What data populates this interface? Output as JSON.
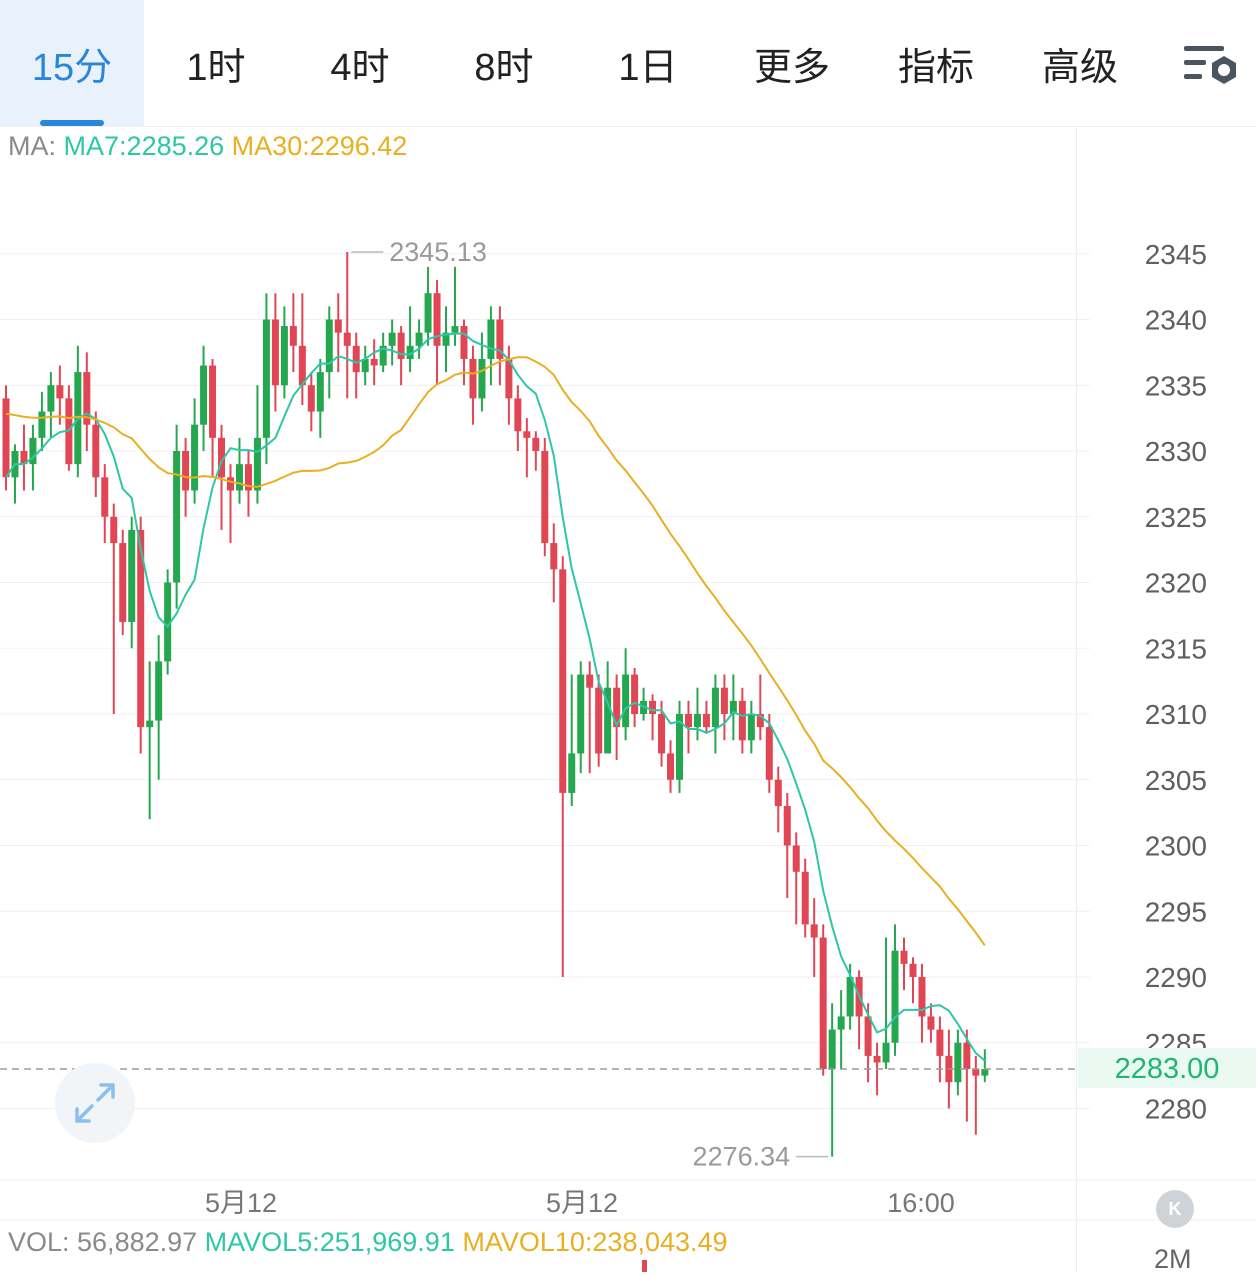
{
  "tabs": [
    {
      "label": "15分",
      "active": true
    },
    {
      "label": "1时"
    },
    {
      "label": "4时"
    },
    {
      "label": "8时"
    },
    {
      "label": "1日"
    },
    {
      "label": "更多",
      "dropdown": true
    },
    {
      "label": "指标",
      "dropdown": true
    },
    {
      "label": "高级",
      "dropdown": true
    }
  ],
  "settings_icon": "chart-settings-icon",
  "ma_legend": {
    "prefix": "MA:",
    "ma7": "MA7:2285.26",
    "ma30": "MA30:2296.42"
  },
  "vol_legend": {
    "vol": "VOL: 56,882.97",
    "mavol5": "MAVOL5:251,969.91",
    "mavol10": "MAVOL10:238,043.49"
  },
  "current_price": "2283.00",
  "vol_axis_label": "2M",
  "k_button_label": "K",
  "expand_icon": "expand-arrows-icon",
  "colors": {
    "up": "#25a750",
    "down": "#e04653",
    "ma7": "#2ec7a6",
    "ma30": "#e8b020",
    "active": "#2a86db"
  },
  "chart_data": {
    "type": "candlestick",
    "y_ticks": [
      2345,
      2340,
      2335,
      2330,
      2325,
      2320,
      2315,
      2310,
      2305,
      2300,
      2295,
      2290,
      2285,
      2280
    ],
    "ylim": [
      2274,
      2349
    ],
    "x_labels": [
      "5月12",
      "5月12",
      "16:00"
    ],
    "high_annotation": "2345.13",
    "low_annotation": "2276.34",
    "last_price": 2283.0,
    "candles": [
      [
        2334.0,
        2328.0,
        2335.0,
        2327.0
      ],
      [
        2328.0,
        2330.0,
        2330.5,
        2326.0
      ],
      [
        2330.0,
        2329.0,
        2332.0,
        2327.0
      ],
      [
        2329.0,
        2331.0,
        2332.0,
        2327.0
      ],
      [
        2331.0,
        2333.0,
        2334.5,
        2330.0
      ],
      [
        2333.0,
        2335.0,
        2336.0,
        2331.0
      ],
      [
        2335.0,
        2334.0,
        2336.5,
        2332.0
      ],
      [
        2334.0,
        2329.0,
        2335.0,
        2328.5
      ],
      [
        2329.0,
        2336.0,
        2338.0,
        2328.0
      ],
      [
        2336.0,
        2332.0,
        2337.5,
        2330.0
      ],
      [
        2332.0,
        2328.0,
        2333.0,
        2326.5
      ],
      [
        2328.0,
        2325.0,
        2329.0,
        2323.0
      ],
      [
        2325.0,
        2323.0,
        2326.0,
        2310.0
      ],
      [
        2323.0,
        2317.0,
        2324.0,
        2316.0
      ],
      [
        2317.0,
        2324.0,
        2325.0,
        2315.0
      ],
      [
        2324.0,
        2309.0,
        2325.0,
        2307.0
      ],
      [
        2309.0,
        2309.5,
        2314.0,
        2302.0
      ],
      [
        2309.5,
        2314.0,
        2316.0,
        2305.0
      ],
      [
        2314.0,
        2320.0,
        2321.0,
        2313.0
      ],
      [
        2320.0,
        2330.0,
        2332.0,
        2318.0
      ],
      [
        2330.0,
        2327.0,
        2331.0,
        2325.0
      ],
      [
        2327.0,
        2332.0,
        2334.0,
        2326.0
      ],
      [
        2332.0,
        2336.5,
        2338.0,
        2330.0
      ],
      [
        2336.5,
        2331.0,
        2337.0,
        2328.0
      ],
      [
        2331.0,
        2328.0,
        2332.0,
        2324.0
      ],
      [
        2328.0,
        2327.0,
        2329.0,
        2323.0
      ],
      [
        2327.0,
        2329.0,
        2331.0,
        2326.0
      ],
      [
        2329.0,
        2327.0,
        2330.0,
        2325.0
      ],
      [
        2327.0,
        2331.0,
        2335.0,
        2326.0
      ],
      [
        2331.0,
        2340.0,
        2342.0,
        2329.0
      ],
      [
        2340.0,
        2335.0,
        2342.0,
        2333.0
      ],
      [
        2335.0,
        2339.5,
        2341.0,
        2334.0
      ],
      [
        2339.5,
        2338.0,
        2342.0,
        2336.0
      ],
      [
        2338.0,
        2335.0,
        2342.0,
        2333.5
      ],
      [
        2335.0,
        2333.0,
        2336.0,
        2331.5
      ],
      [
        2333.0,
        2336.0,
        2337.0,
        2331.0
      ],
      [
        2336.0,
        2340.0,
        2341.0,
        2334.0
      ],
      [
        2340.0,
        2339.0,
        2342.0,
        2336.0
      ],
      [
        2339.0,
        2338.0,
        2345.13,
        2334.0
      ],
      [
        2338.0,
        2336.0,
        2339.0,
        2334.0
      ],
      [
        2336.0,
        2337.0,
        2338.0,
        2335.0
      ],
      [
        2337.0,
        2336.5,
        2338.5,
        2335.0
      ],
      [
        2336.5,
        2338.0,
        2339.0,
        2336.0
      ],
      [
        2338.0,
        2339.0,
        2340.0,
        2336.5
      ],
      [
        2339.0,
        2337.0,
        2339.5,
        2335.0
      ],
      [
        2337.0,
        2338.0,
        2341.0,
        2336.0
      ],
      [
        2338.0,
        2339.0,
        2340.0,
        2337.0
      ],
      [
        2339.0,
        2342.0,
        2344.0,
        2338.0
      ],
      [
        2342.0,
        2338.0,
        2343.0,
        2335.0
      ],
      [
        2338.0,
        2339.0,
        2341.0,
        2336.0
      ],
      [
        2339.0,
        2339.5,
        2344.0,
        2338.0
      ],
      [
        2339.5,
        2337.0,
        2340.0,
        2335.0
      ],
      [
        2337.0,
        2334.0,
        2338.0,
        2332.0
      ],
      [
        2334.0,
        2337.0,
        2339.0,
        2333.0
      ],
      [
        2337.0,
        2340.0,
        2341.0,
        2335.0
      ],
      [
        2340.0,
        2337.0,
        2341.0,
        2335.0
      ],
      [
        2337.0,
        2334.0,
        2338.0,
        2332.0
      ],
      [
        2334.0,
        2331.5,
        2335.0,
        2330.0
      ],
      [
        2331.5,
        2331.0,
        2332.5,
        2328.0
      ],
      [
        2331.0,
        2330.0,
        2331.5,
        2328.5
      ],
      [
        2330.0,
        2323.0,
        2331.0,
        2322.0
      ],
      [
        2323.0,
        2321.0,
        2324.5,
        2318.5
      ],
      [
        2321.0,
        2304.0,
        2322.0,
        2290.0
      ],
      [
        2304.0,
        2307.0,
        2313.0,
        2303.0
      ],
      [
        2307.0,
        2313.0,
        2314.0,
        2305.5
      ],
      [
        2313.0,
        2312.0,
        2314.0,
        2305.5
      ],
      [
        2312.0,
        2307.0,
        2313.0,
        2306.0
      ],
      [
        2307.0,
        2312.0,
        2314.0,
        2307.0
      ],
      [
        2312.0,
        2309.0,
        2313.0,
        2306.5
      ],
      [
        2309.0,
        2313.0,
        2315.0,
        2308.0
      ],
      [
        2313.0,
        2310.0,
        2313.5,
        2309.0
      ],
      [
        2310.0,
        2311.0,
        2312.0,
        2309.5
      ],
      [
        2311.0,
        2310.0,
        2311.5,
        2308.0
      ],
      [
        2310.0,
        2307.0,
        2311.0,
        2306.0
      ],
      [
        2307.0,
        2305.0,
        2308.0,
        2304.0
      ],
      [
        2305.0,
        2310.0,
        2311.0,
        2304.0
      ],
      [
        2310.0,
        2309.0,
        2311.0,
        2307.0
      ],
      [
        2309.0,
        2310.0,
        2312.0,
        2308.0
      ],
      [
        2310.0,
        2309.0,
        2311.0,
        2308.5
      ],
      [
        2309.0,
        2312.0,
        2313.0,
        2307.0
      ],
      [
        2312.0,
        2310.0,
        2313.0,
        2308.0
      ],
      [
        2310.0,
        2311.0,
        2313.0,
        2308.0
      ],
      [
        2311.0,
        2308.0,
        2312.0,
        2307.0
      ],
      [
        2308.0,
        2310.0,
        2311.0,
        2307.0
      ],
      [
        2310.0,
        2309.0,
        2313.0,
        2308.0
      ],
      [
        2309.0,
        2305.0,
        2310.0,
        2304.0
      ],
      [
        2305.0,
        2303.0,
        2306.0,
        2301.0
      ],
      [
        2303.0,
        2300.0,
        2304.0,
        2296.0
      ],
      [
        2300.0,
        2298.0,
        2301.0,
        2294.0
      ],
      [
        2298.0,
        2294.0,
        2299.0,
        2293.0
      ],
      [
        2294.0,
        2293.0,
        2296.0,
        2290.0
      ],
      [
        2293.0,
        2283.0,
        2294.0,
        2282.5
      ],
      [
        2283.0,
        2286.0,
        2288.0,
        2276.34
      ],
      [
        2286.0,
        2287.0,
        2289.0,
        2283.0
      ],
      [
        2287.0,
        2290.0,
        2291.0,
        2286.0
      ],
      [
        2290.0,
        2287.0,
        2290.5,
        2284.5
      ],
      [
        2287.0,
        2284.0,
        2288.0,
        2282.0
      ],
      [
        2284.0,
        2283.5,
        2285.0,
        2281.0
      ],
      [
        2283.5,
        2285.0,
        2293.0,
        2283.0
      ],
      [
        2285.0,
        2292.0,
        2294.0,
        2284.0
      ],
      [
        2292.0,
        2291.0,
        2293.0,
        2289.0
      ],
      [
        2291.0,
        2290.0,
        2291.5,
        2288.0
      ],
      [
        2290.0,
        2287.0,
        2291.0,
        2285.0
      ],
      [
        2287.0,
        2286.0,
        2288.0,
        2285.0
      ],
      [
        2286.0,
        2284.0,
        2287.0,
        2282.0
      ],
      [
        2284.0,
        2282.0,
        2286.0,
        2280.0
      ],
      [
        2282.0,
        2285.0,
        2286.0,
        2281.0
      ],
      [
        2285.0,
        2283.0,
        2286.0,
        2279.0
      ],
      [
        2283.0,
        2282.5,
        2284.0,
        2278.0
      ],
      [
        2282.5,
        2283.0,
        2284.5,
        2282.0
      ]
    ]
  }
}
